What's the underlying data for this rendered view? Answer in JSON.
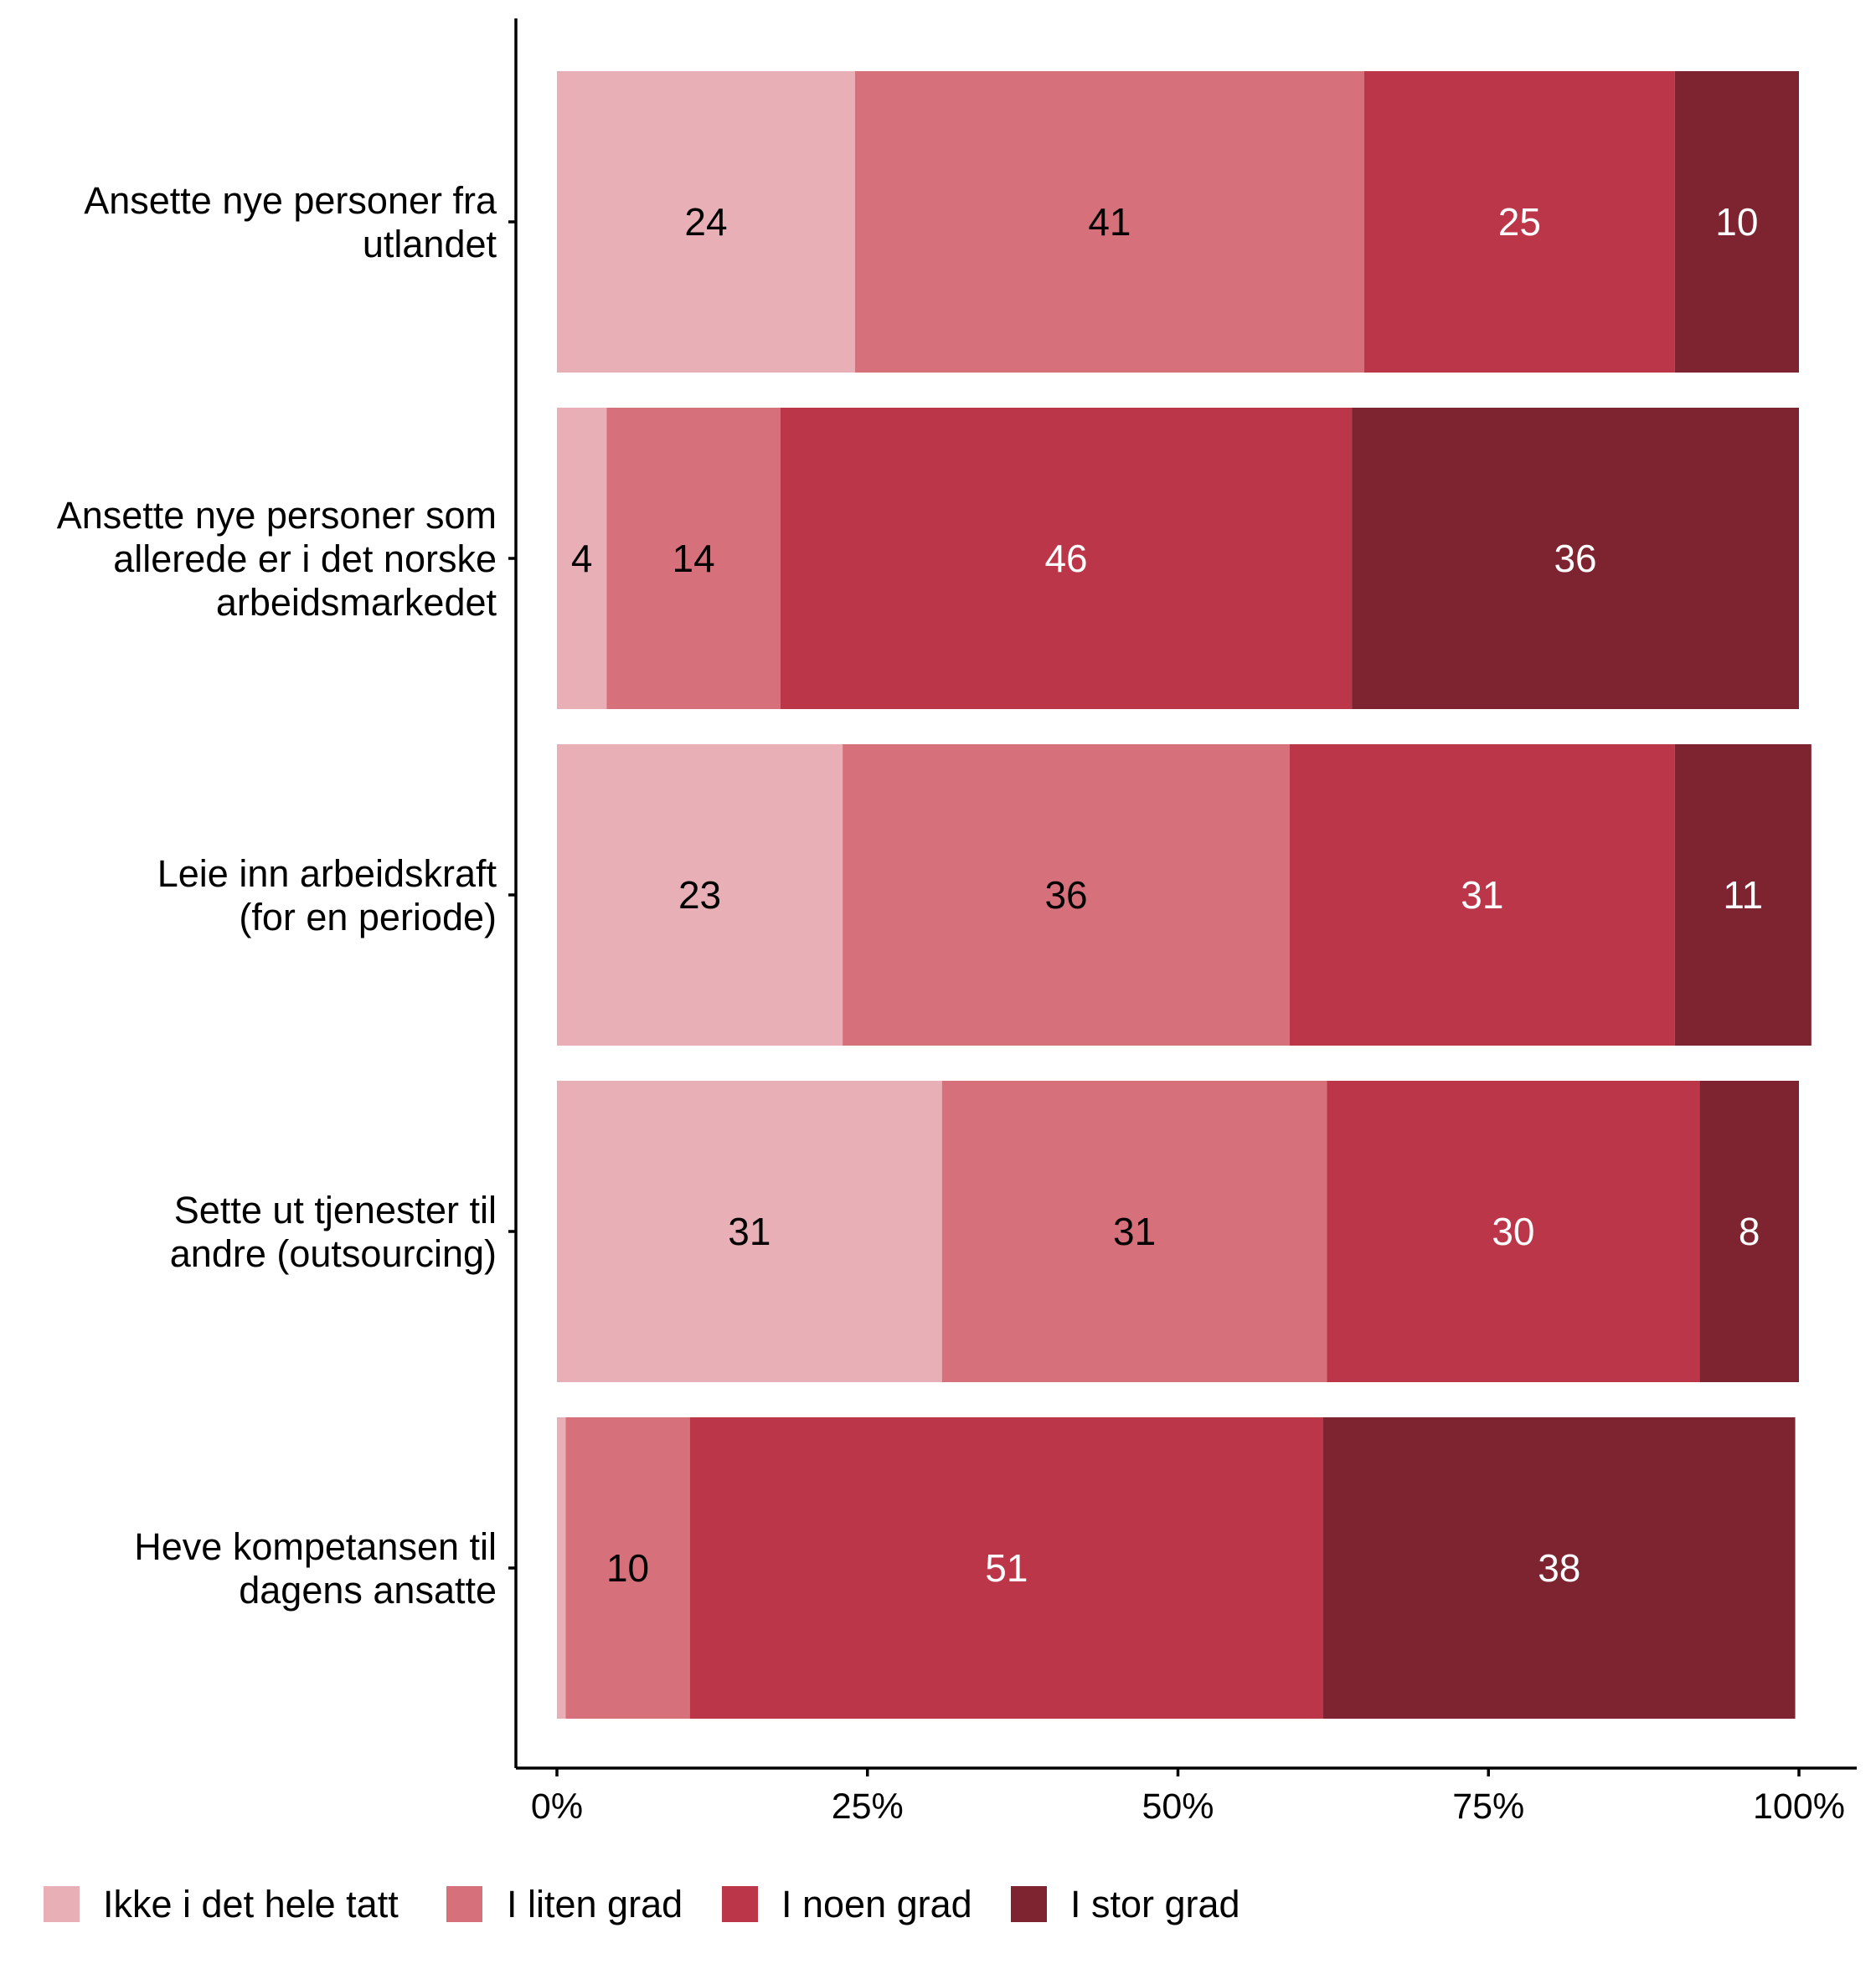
{
  "chart_data": {
    "type": "bar",
    "orientation": "horizontal",
    "stacked": true,
    "percent": true,
    "title": "",
    "xlabel": "",
    "ylabel": "",
    "xlim": [
      0,
      100
    ],
    "x_ticks": [
      "0%",
      "25%",
      "50%",
      "75%",
      "100%"
    ],
    "grid": false,
    "legend_position": "bottom",
    "categories": [
      "Ansette nye personer fra\nutlandet",
      "Ansette nye personer som\nallerede er i det norske\narbeidsmarkedet",
      "Leie inn arbeidskraft\n(for en periode)",
      "Sette ut tjenester til\nandre (outsourcing)",
      "Heve kompetansen til\ndagens ansatte"
    ],
    "series": [
      {
        "name": "Ikke i det hele tatt",
        "color": "#e8b0b6",
        "label_color": "#000000",
        "values": [
          24,
          4,
          23,
          31,
          0.7
        ],
        "labels": [
          "24",
          "4",
          "23",
          "31",
          ""
        ]
      },
      {
        "name": "I liten grad",
        "color": "#d6707b",
        "label_color": "#000000",
        "values": [
          41,
          14,
          36,
          31,
          10
        ],
        "labels": [
          "41",
          "14",
          "36",
          "31",
          "10"
        ]
      },
      {
        "name": "I noen grad",
        "color": "#bc3649",
        "label_color": "#ffffff",
        "values": [
          25,
          46,
          31,
          30,
          51
        ],
        "labels": [
          "25",
          "46",
          "31",
          "30",
          "51"
        ]
      },
      {
        "name": "I stor grad",
        "color": "#7e2430",
        "label_color": "#ffffff",
        "values": [
          10,
          36,
          11,
          8,
          38
        ],
        "labels": [
          "10",
          "36",
          "11",
          "8",
          "38"
        ]
      }
    ]
  }
}
